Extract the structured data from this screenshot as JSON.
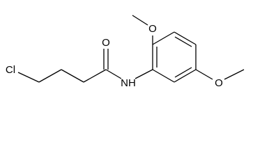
{
  "atoms": {
    "chlorine": "Cl",
    "carbonyl_oxygen": "O",
    "amide_nitrogen": "NH",
    "methoxy_oxygen_top": "O",
    "methoxy_oxygen_bottom": "O"
  }
}
